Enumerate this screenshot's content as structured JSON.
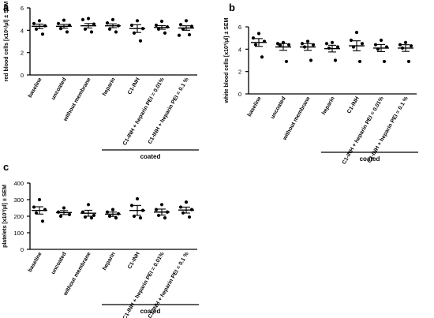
{
  "categories": [
    "baseline",
    "uncoated",
    "without membrane",
    "heparin",
    "C1-INH",
    "C1-INH + heparin PEI = 0.01%",
    "C1-INH + heparin PEI = 0.1 %"
  ],
  "coated_label": "coated",
  "chart_data": [
    {
      "panel": "a",
      "type": "scatter",
      "ylabel": "red blood cells [x10⁶/µl] ± SEM",
      "ylim": [
        0,
        6
      ],
      "yticks": [
        0,
        2,
        4,
        6
      ],
      "points": [
        [
          4.85,
          4.6,
          4.4,
          4.1,
          3.65
        ],
        [
          4.9,
          4.6,
          4.45,
          4.15,
          3.85
        ],
        [
          5.05,
          4.95,
          4.55,
          4.1,
          3.85
        ],
        [
          4.95,
          4.65,
          4.4,
          4.1,
          3.85
        ],
        [
          4.85,
          4.45,
          4.15,
          3.75,
          3.05
        ],
        [
          4.8,
          4.45,
          4.3,
          4.1,
          3.75
        ],
        [
          4.85,
          4.5,
          4.35,
          4.1,
          3.6,
          3.55
        ]
      ],
      "mean": [
        4.35,
        4.35,
        4.4,
        4.4,
        4.15,
        4.25,
        4.2
      ],
      "sem": [
        0.2,
        0.17,
        0.2,
        0.17,
        0.35,
        0.16,
        0.2
      ]
    },
    {
      "panel": "b",
      "type": "scatter",
      "ylabel": "white blood cells [x10³/µl] ± SEM",
      "ylim": [
        0,
        6
      ],
      "yticks": [
        0,
        2,
        4,
        6
      ],
      "points": [
        [
          5.4,
          5.0,
          4.7,
          4.4,
          3.3
        ],
        [
          4.6,
          4.5,
          4.4,
          4.35,
          2.9
        ],
        [
          4.7,
          4.5,
          4.4,
          4.2,
          3.0
        ],
        [
          4.6,
          4.5,
          4.2,
          4.1,
          3.0
        ],
        [
          5.5,
          4.8,
          4.5,
          4.2,
          2.9
        ],
        [
          4.8,
          4.4,
          4.2,
          4.0,
          2.9
        ],
        [
          4.6,
          4.4,
          4.3,
          4.1,
          2.9
        ]
      ],
      "mean": [
        4.6,
        4.2,
        4.2,
        4.05,
        4.3,
        4.1,
        4.1
      ],
      "sem": [
        0.35,
        0.3,
        0.3,
        0.3,
        0.45,
        0.32,
        0.3
      ]
    },
    {
      "panel": "c",
      "type": "scatter",
      "ylabel": "platelets [x10³/µl] ± SEM",
      "ylim": [
        0,
        400
      ],
      "yticks": [
        0,
        100,
        200,
        300,
        400
      ],
      "points": [
        [
          300,
          255,
          240,
          220,
          170
        ],
        [
          250,
          225,
          210,
          200
        ],
        [
          270,
          225,
          205,
          195,
          190
        ],
        [
          240,
          225,
          215,
          200,
          190
        ],
        [
          305,
          265,
          235,
          200,
          190
        ],
        [
          270,
          240,
          225,
          205,
          190
        ],
        [
          285,
          255,
          240,
          220,
          195
        ]
      ],
      "mean": [
        235,
        222,
        218,
        212,
        235,
        225,
        237
      ],
      "sem": [
        22,
        12,
        18,
        13,
        30,
        18,
        18
      ]
    }
  ]
}
